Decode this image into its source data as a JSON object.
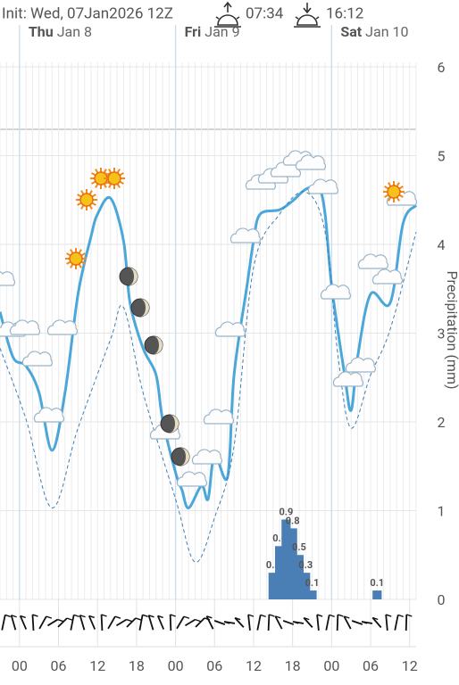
{
  "header": {
    "init": "Init: Wed, 07Jan2026 12Z",
    "sunrise": "07:34",
    "sunset": "16:12"
  },
  "days": [
    {
      "day": "Thu",
      "date": "Jan 8",
      "x": 0
    },
    {
      "day": "Fri",
      "date": "Jan 9",
      "x": 24
    },
    {
      "day": "Sat",
      "date": "Jan 10",
      "x": 48
    }
  ],
  "chart_data": {
    "type": "meteogram",
    "y_label": "Precipitation (mm)",
    "xlim": [
      -3,
      61
    ],
    "ylim": [
      0,
      6
    ],
    "yticks": [
      0,
      1,
      2,
      3,
      4,
      5,
      6
    ],
    "grid": true,
    "xticks": [
      {
        "value": 0,
        "label": "00"
      },
      {
        "value": 6,
        "label": "06"
      },
      {
        "value": 12,
        "label": "12"
      },
      {
        "value": 18,
        "label": "18"
      },
      {
        "value": 24,
        "label": "00"
      },
      {
        "value": 30,
        "label": "06"
      },
      {
        "value": 36,
        "label": "12"
      },
      {
        "value": 42,
        "label": "18"
      },
      {
        "value": 48,
        "label": "00"
      },
      {
        "value": 54,
        "label": "06"
      },
      {
        "value": 60,
        "label": "12"
      }
    ],
    "series": [
      {
        "color": "#4ba7d9",
        "dashed": false,
        "x": [
          -3,
          -1,
          1,
          3,
          5,
          7,
          9,
          11,
          12,
          14,
          16,
          17,
          19,
          21,
          22,
          24,
          25,
          26,
          28,
          29,
          30,
          32,
          33,
          35,
          36,
          37,
          40,
          42,
          44,
          46,
          47,
          48,
          50,
          51,
          52,
          54,
          57,
          59,
          61
        ],
        "values": [
          3.24,
          2.73,
          2.63,
          2.33,
          1.68,
          2.33,
          3.44,
          4.09,
          4.34,
          4.52,
          4.04,
          3.34,
          2.83,
          2.53,
          2.03,
          1.43,
          1.23,
          1.03,
          1.28,
          1.13,
          1.63,
          1.38,
          2.53,
          3.54,
          4.04,
          4.34,
          4.39,
          4.49,
          4.62,
          4.64,
          4.34,
          3.54,
          2.53,
          2.13,
          2.73,
          3.44,
          3.34,
          4.24,
          4.44
        ]
      },
      {
        "color": "#3f7fb5",
        "dashed": true,
        "x": [
          -3,
          1,
          5,
          9,
          14,
          16,
          19,
          24,
          27,
          30,
          33,
          36,
          40,
          44,
          47,
          49,
          51,
          54,
          57,
          61
        ],
        "values": [
          2.83,
          2.03,
          1.03,
          1.93,
          2.93,
          3.29,
          2.33,
          1.13,
          0.42,
          0.92,
          1.73,
          3.74,
          4.34,
          4.59,
          4.14,
          2.73,
          1.93,
          2.53,
          3.04,
          4.14
        ]
      }
    ],
    "precipitation": {
      "color": "#4a7fb6",
      "x": [
        39,
        40,
        41,
        42,
        43,
        44,
        45,
        55
      ],
      "values": [
        0.3,
        0.6,
        0.9,
        0.8,
        0.5,
        0.3,
        0.1,
        0.1
      ]
    }
  }
}
